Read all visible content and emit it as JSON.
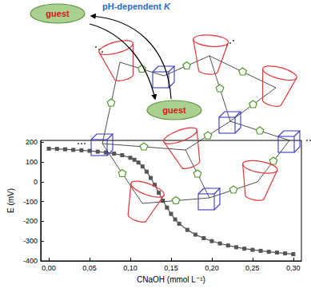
{
  "chart_data": {
    "type": "line",
    "marker": "square",
    "color": "#555555",
    "xlabel": "CNaOH (mmol L⁻¹)",
    "ylabel": "E (mV)",
    "x": [
      0.0,
      0.01,
      0.02,
      0.03,
      0.04,
      0.05,
      0.06,
      0.07,
      0.08,
      0.09,
      0.1,
      0.105,
      0.11,
      0.115,
      0.12,
      0.125,
      0.13,
      0.135,
      0.14,
      0.145,
      0.15,
      0.155,
      0.16,
      0.17,
      0.18,
      0.19,
      0.2,
      0.21,
      0.22,
      0.23,
      0.24,
      0.25,
      0.26,
      0.27,
      0.28,
      0.29,
      0.3
    ],
    "values": [
      168,
      167,
      165,
      162,
      160,
      157,
      153,
      149,
      143,
      135,
      122,
      112,
      98,
      78,
      52,
      20,
      -15,
      -55,
      -95,
      -130,
      -162,
      -190,
      -212,
      -243,
      -267,
      -285,
      -300,
      -312,
      -322,
      -331,
      -338,
      -344,
      -349,
      -354,
      -358,
      -362,
      -366
    ],
    "xlim": [
      -0.01,
      0.31
    ],
    "xticks": [
      {
        "value": 0,
        "label": "0,00"
      },
      {
        "value": 0.05,
        "label": "0,05"
      },
      {
        "value": 0.1,
        "label": "0,10"
      },
      {
        "value": 0.15,
        "label": "0,15"
      },
      {
        "value": 0.2,
        "label": "0,20"
      },
      {
        "value": 0.25,
        "label": "0,25"
      },
      {
        "value": 0.3,
        "label": "0,30"
      }
    ],
    "ylim": [
      -400,
      210
    ],
    "yticks": [
      -400,
      -300,
      -200,
      -100,
      0,
      100,
      200
    ],
    "grid": false,
    "annotations": [
      {
        "text": "guest"
      },
      {
        "text": "pH-dependent K"
      },
      {
        "text": "guest"
      }
    ]
  }
}
